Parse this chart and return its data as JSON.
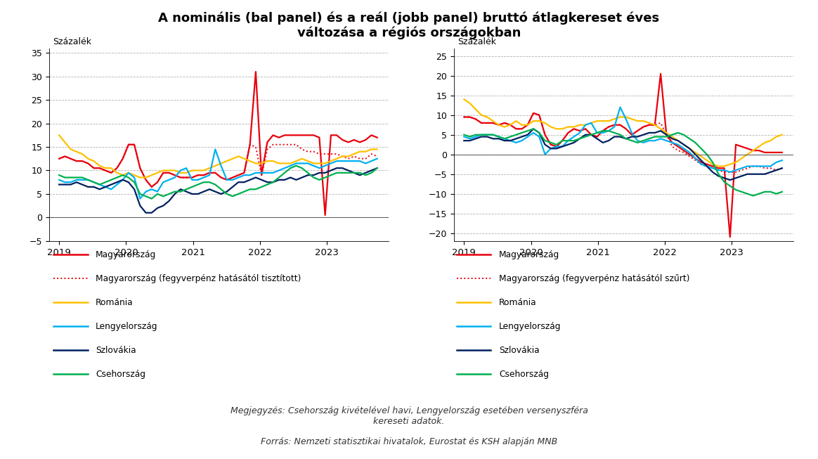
{
  "title": "A nominális (bal panel) és a reál (jobb panel) bruttó átlagkereset éves\nváltozása a régiós országokban",
  "note": "Megjegyzés: Csehország kivételével havi, Lengyelország esetében versenyszféra\nkereseti adatok.",
  "source": "Forrás: Nemzeti statisztikai hivatalok, Eurostat és KSH alapján MNB",
  "colors": {
    "magyarorszag": "#e8000d",
    "magyarorszag_fegy": "#e8000d",
    "romania": "#ffc000",
    "lengyelorszag": "#00b0f0",
    "szlovakia": "#002060",
    "csehorszag": "#00b050"
  },
  "left_ylim": [
    -5,
    36
  ],
  "left_yticks": [
    -5,
    0,
    5,
    10,
    15,
    20,
    25,
    30,
    35
  ],
  "right_ylim": [
    -22,
    27
  ],
  "right_yticks": [
    -20,
    -15,
    -10,
    -5,
    0,
    5,
    10,
    15,
    20,
    25
  ],
  "legend_left": [
    "Magyarország",
    "Magyarország (fegyverpénz hatásától tisztított)",
    "Románia",
    "Lengyelország",
    "Szlovákia",
    "Csehország"
  ],
  "legend_right": [
    "Magyarország",
    "Magyarország (fegyverpénz hatásától szűrt)",
    "Románia",
    "Lengyelország",
    "Szlovákia",
    "Csehország"
  ],
  "nominal": {
    "magyarorszag": [
      12.5,
      13.0,
      12.5,
      12.0,
      12.0,
      11.5,
      10.5,
      10.5,
      10.0,
      9.5,
      10.5,
      12.5,
      15.5,
      15.5,
      10.5,
      8.0,
      6.5,
      7.5,
      9.5,
      9.5,
      9.0,
      8.5,
      8.5,
      8.5,
      9.0,
      9.0,
      9.5,
      9.5,
      8.5,
      8.0,
      8.5,
      9.0,
      9.5,
      15.5,
      31.0,
      9.0,
      16.0,
      17.5,
      17.0,
      17.5,
      17.5,
      17.5,
      17.5,
      17.5,
      17.5,
      17.0,
      0.5,
      17.5,
      17.5,
      16.5,
      16.0,
      16.5,
      16.0,
      16.5,
      17.5,
      17.0
    ],
    "magyarorszag_fegy": [
      12.5,
      13.0,
      12.5,
      12.0,
      12.0,
      11.5,
      10.5,
      10.5,
      10.0,
      9.5,
      10.5,
      12.5,
      15.5,
      15.5,
      10.5,
      8.0,
      6.5,
      7.5,
      9.5,
      9.5,
      9.0,
      8.5,
      8.5,
      8.5,
      9.0,
      9.0,
      9.5,
      9.5,
      8.5,
      8.0,
      8.5,
      9.0,
      9.5,
      15.5,
      15.0,
      9.0,
      14.5,
      15.5,
      15.5,
      15.5,
      15.5,
      15.5,
      14.5,
      14.0,
      14.0,
      13.5,
      13.5,
      13.5,
      13.5,
      13.0,
      12.5,
      13.0,
      12.5,
      12.5,
      13.5,
      13.0
    ],
    "romania": [
      17.5,
      16.0,
      14.5,
      14.0,
      13.5,
      12.5,
      12.0,
      11.0,
      10.5,
      10.5,
      9.5,
      9.0,
      9.5,
      9.0,
      8.5,
      8.5,
      9.0,
      9.5,
      10.0,
      10.0,
      10.0,
      9.5,
      9.5,
      10.0,
      10.0,
      10.0,
      10.5,
      11.0,
      11.5,
      12.0,
      12.5,
      13.0,
      12.5,
      12.0,
      11.5,
      11.5,
      12.0,
      12.0,
      11.5,
      11.5,
      11.5,
      12.0,
      12.5,
      12.0,
      11.5,
      11.5,
      11.5,
      12.0,
      12.5,
      13.0,
      13.0,
      13.5,
      14.0,
      14.0,
      14.5,
      14.5
    ],
    "lengyelorszag": [
      8.0,
      7.5,
      7.5,
      8.0,
      8.0,
      8.0,
      7.5,
      7.0,
      6.5,
      6.0,
      7.0,
      8.0,
      9.5,
      8.5,
      4.0,
      5.5,
      6.0,
      5.5,
      7.5,
      8.0,
      8.5,
      10.0,
      10.5,
      8.0,
      8.0,
      8.5,
      9.0,
      14.5,
      11.0,
      8.0,
      8.0,
      8.5,
      9.0,
      9.0,
      9.5,
      9.5,
      9.5,
      9.5,
      10.0,
      10.5,
      11.0,
      11.5,
      11.5,
      11.5,
      11.0,
      10.5,
      11.0,
      11.5,
      12.0,
      12.0,
      12.0,
      12.0,
      12.0,
      11.5,
      12.0,
      12.5
    ],
    "szlovakia": [
      7.0,
      7.0,
      7.0,
      7.5,
      7.0,
      6.5,
      6.5,
      6.0,
      6.5,
      7.0,
      7.5,
      8.0,
      7.5,
      6.0,
      2.5,
      1.0,
      1.0,
      2.0,
      2.5,
      3.5,
      5.0,
      6.0,
      5.5,
      5.0,
      5.0,
      5.5,
      6.0,
      5.5,
      5.0,
      5.5,
      6.5,
      7.5,
      7.5,
      8.0,
      8.5,
      8.0,
      7.5,
      7.5,
      8.0,
      8.0,
      8.5,
      8.0,
      8.5,
      9.0,
      9.0,
      9.5,
      9.5,
      10.0,
      10.5,
      10.5,
      10.0,
      9.5,
      9.0,
      9.5,
      10.0,
      10.5
    ],
    "csehorszag": [
      9.0,
      8.5,
      8.5,
      8.5,
      8.5,
      8.0,
      7.5,
      7.0,
      7.5,
      8.0,
      8.5,
      9.0,
      8.5,
      7.5,
      5.0,
      4.5,
      4.0,
      5.0,
      4.5,
      5.0,
      5.5,
      5.5,
      6.0,
      6.5,
      7.0,
      7.5,
      7.5,
      7.0,
      6.0,
      5.0,
      4.5,
      5.0,
      5.5,
      6.0,
      6.0,
      6.5,
      7.0,
      7.5,
      8.5,
      9.5,
      10.5,
      11.0,
      10.5,
      9.5,
      8.5,
      8.0,
      8.5,
      9.0,
      9.5,
      9.5,
      9.5,
      9.5,
      9.5,
      9.0,
      9.5,
      10.5
    ]
  },
  "real": {
    "magyarorszag": [
      9.5,
      9.5,
      9.0,
      8.0,
      8.0,
      8.0,
      7.5,
      8.0,
      7.5,
      6.5,
      6.5,
      7.5,
      10.5,
      10.0,
      5.0,
      2.5,
      2.0,
      3.5,
      5.5,
      6.5,
      6.0,
      6.5,
      5.0,
      4.5,
      6.0,
      7.0,
      7.5,
      7.5,
      6.5,
      5.0,
      6.0,
      7.0,
      7.5,
      7.5,
      20.5,
      5.0,
      3.0,
      2.0,
      1.0,
      0.0,
      -1.0,
      -2.0,
      -2.5,
      -3.0,
      -3.5,
      -3.5,
      -21.0,
      2.5,
      2.0,
      1.5,
      1.0,
      1.0,
      0.5,
      0.5,
      0.5,
      0.5
    ],
    "magyarorszag_fegy": [
      9.5,
      9.5,
      9.0,
      8.0,
      8.0,
      8.0,
      7.5,
      8.0,
      7.5,
      6.5,
      6.5,
      7.5,
      10.5,
      10.0,
      5.0,
      2.5,
      2.0,
      3.5,
      5.5,
      6.5,
      6.0,
      6.5,
      5.0,
      4.5,
      6.0,
      7.0,
      7.5,
      7.5,
      6.5,
      5.0,
      6.0,
      7.0,
      7.5,
      7.5,
      8.0,
      5.0,
      2.0,
      1.0,
      0.5,
      -0.5,
      -1.5,
      -2.5,
      -3.0,
      -3.5,
      -4.0,
      -4.5,
      -4.5,
      -4.5,
      -4.0,
      -3.5,
      -3.0,
      -3.0,
      -3.5,
      -3.5,
      -4.0,
      -3.5
    ],
    "romania": [
      14.0,
      13.0,
      11.5,
      10.0,
      9.5,
      8.5,
      7.5,
      7.0,
      7.5,
      8.5,
      7.5,
      7.5,
      8.5,
      8.5,
      8.0,
      7.0,
      6.5,
      6.5,
      7.0,
      7.0,
      7.5,
      7.5,
      8.0,
      8.5,
      8.5,
      8.5,
      9.0,
      9.5,
      9.5,
      9.0,
      8.5,
      8.5,
      8.0,
      7.5,
      6.5,
      5.5,
      4.5,
      3.5,
      2.5,
      1.5,
      0.5,
      -0.5,
      -1.5,
      -2.5,
      -3.0,
      -3.0,
      -2.5,
      -2.0,
      -1.0,
      0.0,
      1.0,
      2.0,
      3.0,
      3.5,
      4.5,
      5.0
    ],
    "lengyelorszag": [
      4.5,
      4.0,
      4.5,
      5.0,
      5.0,
      5.0,
      4.5,
      4.0,
      3.5,
      3.0,
      3.5,
      4.5,
      5.5,
      4.5,
      0.0,
      1.5,
      2.0,
      2.0,
      3.5,
      4.5,
      5.5,
      7.5,
      8.0,
      5.5,
      5.5,
      6.0,
      7.0,
      12.0,
      9.0,
      5.5,
      3.5,
      3.0,
      3.5,
      3.5,
      4.0,
      3.5,
      3.0,
      2.5,
      1.5,
      0.5,
      -1.0,
      -2.5,
      -3.0,
      -3.5,
      -4.0,
      -4.0,
      -4.5,
      -4.0,
      -3.5,
      -3.0,
      -3.0,
      -3.0,
      -3.0,
      -3.0,
      -2.0,
      -1.5
    ],
    "szlovakia": [
      3.5,
      3.5,
      4.0,
      4.5,
      4.5,
      4.0,
      4.0,
      3.5,
      3.5,
      4.0,
      4.5,
      5.0,
      6.5,
      5.5,
      2.5,
      1.5,
      1.5,
      2.0,
      2.5,
      3.0,
      4.0,
      5.0,
      5.0,
      4.0,
      3.0,
      3.5,
      4.5,
      4.5,
      4.0,
      4.5,
      4.5,
      5.0,
      5.5,
      5.5,
      6.0,
      5.0,
      4.0,
      3.5,
      2.5,
      1.5,
      0.0,
      -1.5,
      -3.0,
      -4.5,
      -5.5,
      -6.0,
      -6.5,
      -6.0,
      -5.5,
      -5.0,
      -5.0,
      -5.0,
      -5.0,
      -4.5,
      -4.0,
      -3.5
    ],
    "csehorszag": [
      5.0,
      4.5,
      5.0,
      5.0,
      5.0,
      5.0,
      4.5,
      4.0,
      4.5,
      5.0,
      5.5,
      6.0,
      6.5,
      5.5,
      3.5,
      3.0,
      2.5,
      3.5,
      3.5,
      3.5,
      4.0,
      4.5,
      5.0,
      5.5,
      6.0,
      6.0,
      5.5,
      5.0,
      4.0,
      3.5,
      3.0,
      3.5,
      4.0,
      4.5,
      4.5,
      4.5,
      5.0,
      5.5,
      5.0,
      4.0,
      3.0,
      1.5,
      0.0,
      -2.0,
      -5.0,
      -7.0,
      -8.0,
      -9.0,
      -9.5,
      -10.0,
      -10.5,
      -10.0,
      -9.5,
      -9.5,
      -10.0,
      -9.5
    ]
  }
}
